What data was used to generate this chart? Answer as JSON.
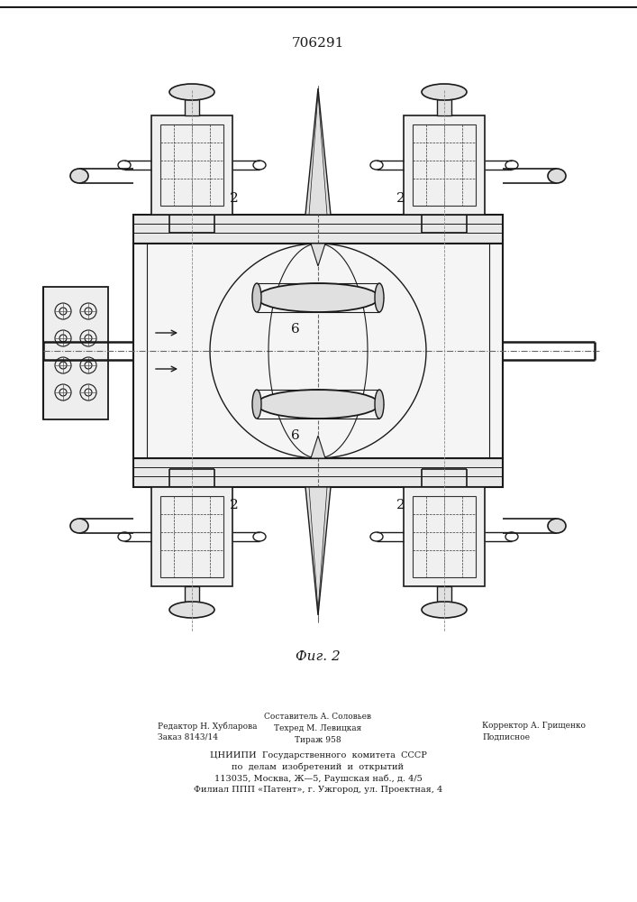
{
  "patent_number": "706291",
  "fig_label": "Фиг. 2",
  "bottom_text_left_col1": "Редактор Н. Хубларова",
  "bottom_text_left_col2": "Заказ 8143/14",
  "bottom_text_center1": "Составитель А. Соловьев",
  "bottom_text_center2": "Техред М. Левицкая",
  "bottom_text_center3": "Тираж 958",
  "bottom_text_right1": "Корректор А. Грищенко",
  "bottom_text_right2": "Подписное",
  "bottom_text_line3": "ЦНИИПИ  Государственного  комитета  СССР",
  "bottom_text_line4": "по  делам  изобретений  и  открытий",
  "bottom_text_line5": "113035, Москва, Ж—5, Раушская наб., д. 4/5",
  "bottom_text_line6": "Филиал ППП «Патент», г. Ужгород, ул. Проектная, 4",
  "bg_color": "#ffffff",
  "line_color": "#1a1a1a"
}
